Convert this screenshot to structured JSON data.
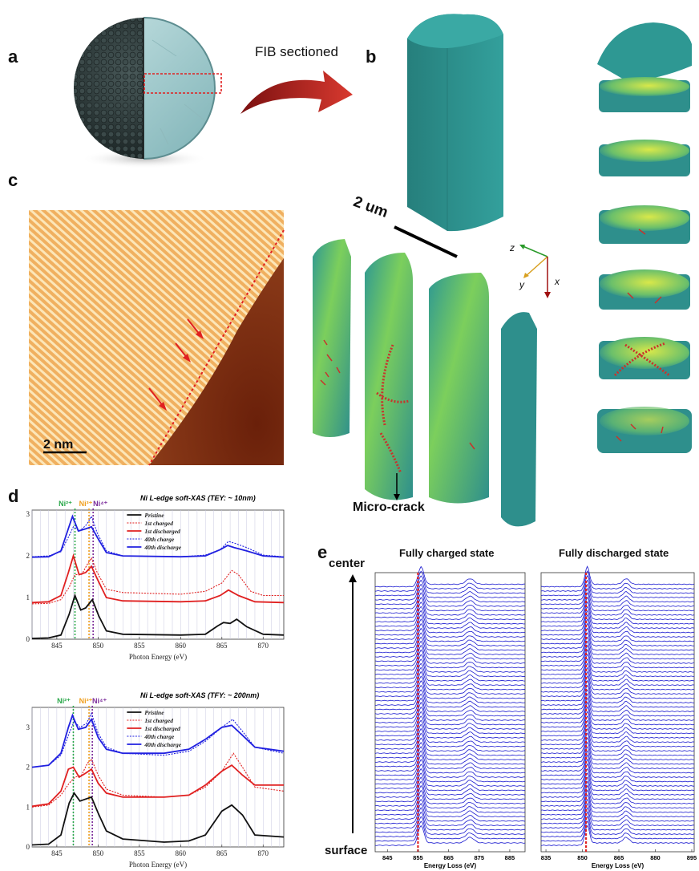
{
  "panels": {
    "a": "a",
    "b": "b",
    "c": "c",
    "d": "d",
    "e": "e"
  },
  "annotations": {
    "fib_sectioned": "FIB sectioned",
    "scale_2um": "2 um",
    "scale_2nm": "2 nm",
    "micro_crack": "Micro-crack",
    "axis_z": "z",
    "axis_y": "y",
    "axis_x": "x",
    "center": "center",
    "surface": "surface"
  },
  "colors": {
    "particle_dark": "#2c3a3a",
    "particle_light": "#9ec9cc",
    "arrow_red": "#c8332b",
    "tomo_teal": "#2e8f8c",
    "tomo_yellow": "#d8e84a",
    "stem_light": "#f3c07a",
    "stem_dark": "#7a2a10",
    "spec_black": "#111111",
    "spec_red": "#e02020",
    "spec_blue": "#2020e0",
    "ni2_green": "#2aa84a",
    "ni3_orange": "#f0a020",
    "ni4_purple": "#7a2a9a",
    "eels_blue": "#1a1ad0",
    "eels_red": "#e02020"
  },
  "chart_data": [
    {
      "type": "line",
      "title": "Ni L-edge soft-XAS (TEY: ~ 10nm)",
      "xlabel": "Photon Energy (eV)",
      "ylabel": "",
      "xlim": [
        842,
        872.5
      ],
      "ylim": [
        0,
        3.1
      ],
      "xticks": [
        845,
        850,
        855,
        860,
        865,
        870
      ],
      "yticks": [
        0,
        1,
        2,
        3
      ],
      "markers": [
        {
          "label": "Ni²⁺",
          "x": 847.2,
          "color": "#2aa84a"
        },
        {
          "label": "Ni³⁺",
          "x": 848.9,
          "color": "#f0a020"
        },
        {
          "label": "Ni⁴⁺",
          "x": 849.4,
          "color": "#7a2a9a"
        }
      ],
      "legend": [
        "Pristine",
        "1st charged",
        "1st discharged",
        "40th charge",
        "40th discharge"
      ],
      "series": [
        {
          "name": "Pristine",
          "color": "#111111",
          "dash": false,
          "offset": 0,
          "points": [
            [
              842,
              0.02
            ],
            [
              844,
              0.03
            ],
            [
              845.5,
              0.1
            ],
            [
              846.5,
              0.6
            ],
            [
              847.2,
              1.05
            ],
            [
              847.9,
              0.7
            ],
            [
              848.5,
              0.75
            ],
            [
              849.3,
              0.95
            ],
            [
              850.1,
              0.55
            ],
            [
              851,
              0.2
            ],
            [
              853,
              0.12
            ],
            [
              860,
              0.1
            ],
            [
              863,
              0.12
            ],
            [
              864.5,
              0.32
            ],
            [
              865.2,
              0.4
            ],
            [
              866,
              0.38
            ],
            [
              866.8,
              0.48
            ],
            [
              868,
              0.3
            ],
            [
              870,
              0.12
            ],
            [
              872.5,
              0.1
            ]
          ]
        },
        {
          "name": "1st charged",
          "color": "#e02020",
          "dash": true,
          "offset": 1,
          "points": [
            [
              842,
              0.85
            ],
            [
              844,
              0.86
            ],
            [
              845.5,
              0.95
            ],
            [
              846.5,
              1.25
            ],
            [
              847.2,
              1.55
            ],
            [
              848,
              1.55
            ],
            [
              848.7,
              1.8
            ],
            [
              849.2,
              1.95
            ],
            [
              849.9,
              1.6
            ],
            [
              851,
              1.2
            ],
            [
              853,
              1.12
            ],
            [
              860,
              1.08
            ],
            [
              863,
              1.15
            ],
            [
              865,
              1.35
            ],
            [
              866.2,
              1.65
            ],
            [
              867,
              1.55
            ],
            [
              868.5,
              1.15
            ],
            [
              870,
              1.05
            ],
            [
              872.5,
              1.05
            ]
          ]
        },
        {
          "name": "1st discharged",
          "color": "#e02020",
          "dash": false,
          "offset": 1,
          "points": [
            [
              842,
              0.88
            ],
            [
              844,
              0.9
            ],
            [
              845.5,
              1.05
            ],
            [
              846.4,
              1.6
            ],
            [
              847.0,
              2.0
            ],
            [
              847.7,
              1.55
            ],
            [
              848.5,
              1.6
            ],
            [
              849.2,
              1.75
            ],
            [
              849.9,
              1.45
            ],
            [
              851,
              1.0
            ],
            [
              853,
              0.92
            ],
            [
              860,
              0.9
            ],
            [
              863,
              0.92
            ],
            [
              864.8,
              1.05
            ],
            [
              865.8,
              1.18
            ],
            [
              867,
              1.05
            ],
            [
              869,
              0.9
            ],
            [
              872.5,
              0.88
            ]
          ]
        },
        {
          "name": "40th charge",
          "color": "#2020e0",
          "dash": true,
          "offset": 2,
          "points": [
            [
              842,
              1.98
            ],
            [
              844,
              2.0
            ],
            [
              845.5,
              2.1
            ],
            [
              846.4,
              2.45
            ],
            [
              847.0,
              2.7
            ],
            [
              847.8,
              2.6
            ],
            [
              848.6,
              2.75
            ],
            [
              849.2,
              2.95
            ],
            [
              849.9,
              2.55
            ],
            [
              851,
              2.12
            ],
            [
              853,
              2.0
            ],
            [
              860,
              1.98
            ],
            [
              863,
              2.02
            ],
            [
              864.8,
              2.15
            ],
            [
              865.8,
              2.35
            ],
            [
              866.6,
              2.3
            ],
            [
              868,
              2.2
            ],
            [
              870,
              2.02
            ],
            [
              872.5,
              1.98
            ]
          ]
        },
        {
          "name": "40th discharge",
          "color": "#2020e0",
          "dash": false,
          "offset": 2,
          "points": [
            [
              842,
              1.97
            ],
            [
              844,
              1.98
            ],
            [
              845.5,
              2.12
            ],
            [
              846.3,
              2.6
            ],
            [
              846.9,
              2.95
            ],
            [
              847.6,
              2.6
            ],
            [
              848.5,
              2.65
            ],
            [
              849.2,
              2.7
            ],
            [
              849.9,
              2.45
            ],
            [
              851,
              2.08
            ],
            [
              853,
              2.0
            ],
            [
              860,
              1.98
            ],
            [
              863,
              2.0
            ],
            [
              864.8,
              2.15
            ],
            [
              865.7,
              2.25
            ],
            [
              866.5,
              2.2
            ],
            [
              868,
              2.12
            ],
            [
              870,
              2.0
            ],
            [
              872.5,
              1.97
            ]
          ]
        }
      ]
    },
    {
      "type": "line",
      "title": "Ni L-edge soft-XAS (TFY: ~ 200nm)",
      "xlabel": "Photon Energy (eV)",
      "ylabel": "",
      "xlim": [
        842,
        872.5
      ],
      "ylim": [
        0,
        3.5
      ],
      "xticks": [
        845,
        850,
        855,
        860,
        865,
        870
      ],
      "yticks": [
        0,
        1,
        2,
        3
      ],
      "markers": [
        {
          "label": "Ni²⁺",
          "x": 847.0,
          "color": "#2aa84a"
        },
        {
          "label": "Ni³⁺",
          "x": 848.9,
          "color": "#f0a020"
        },
        {
          "label": "Ni⁴⁺",
          "x": 849.3,
          "color": "#7a2a9a"
        }
      ],
      "legend": [
        "Pristine",
        "1st charged",
        "1st discharged",
        "40th charge",
        "40th discharge"
      ],
      "series": [
        {
          "name": "Pristine",
          "color": "#111111",
          "dash": false,
          "offset": 0,
          "points": [
            [
              842,
              0.05
            ],
            [
              844,
              0.07
            ],
            [
              845.5,
              0.3
            ],
            [
              846.5,
              1.1
            ],
            [
              847.1,
              1.35
            ],
            [
              847.8,
              1.15
            ],
            [
              848.5,
              1.2
            ],
            [
              849.2,
              1.25
            ],
            [
              850,
              0.85
            ],
            [
              851,
              0.4
            ],
            [
              853,
              0.2
            ],
            [
              858,
              0.12
            ],
            [
              861,
              0.15
            ],
            [
              863,
              0.3
            ],
            [
              865,
              0.9
            ],
            [
              866.2,
              1.05
            ],
            [
              867.5,
              0.8
            ],
            [
              869,
              0.3
            ],
            [
              872.5,
              0.25
            ]
          ]
        },
        {
          "name": "1st charged",
          "color": "#e02020",
          "dash": true,
          "offset": 1,
          "points": [
            [
              842,
              1.0
            ],
            [
              844,
              1.05
            ],
            [
              845.5,
              1.3
            ],
            [
              846.5,
              1.6
            ],
            [
              847.2,
              1.75
            ],
            [
              848,
              1.8
            ],
            [
              848.7,
              2.1
            ],
            [
              849.2,
              2.2
            ],
            [
              850,
              1.8
            ],
            [
              851,
              1.45
            ],
            [
              853,
              1.3
            ],
            [
              858,
              1.25
            ],
            [
              861,
              1.3
            ],
            [
              863,
              1.5
            ],
            [
              865,
              1.9
            ],
            [
              866.4,
              2.35
            ],
            [
              867.5,
              2.0
            ],
            [
              869,
              1.5
            ],
            [
              872.5,
              1.4
            ]
          ]
        },
        {
          "name": "1st discharged",
          "color": "#e02020",
          "dash": false,
          "offset": 1,
          "points": [
            [
              842,
              1.02
            ],
            [
              844,
              1.08
            ],
            [
              845.5,
              1.4
            ],
            [
              846.4,
              1.95
            ],
            [
              847.0,
              2.0
            ],
            [
              847.7,
              1.75
            ],
            [
              848.5,
              1.85
            ],
            [
              849.2,
              1.95
            ],
            [
              850,
              1.6
            ],
            [
              851,
              1.35
            ],
            [
              853,
              1.25
            ],
            [
              858,
              1.25
            ],
            [
              861,
              1.3
            ],
            [
              863,
              1.55
            ],
            [
              865,
              1.9
            ],
            [
              866.2,
              2.05
            ],
            [
              867.5,
              1.8
            ],
            [
              869,
              1.55
            ],
            [
              872.5,
              1.55
            ]
          ]
        },
        {
          "name": "40th charge",
          "color": "#2020e0",
          "dash": true,
          "offset": 2,
          "points": [
            [
              842,
              2.0
            ],
            [
              844,
              2.05
            ],
            [
              845.5,
              2.3
            ],
            [
              846.5,
              2.85
            ],
            [
              847.1,
              3.15
            ],
            [
              847.8,
              3.0
            ],
            [
              848.6,
              3.1
            ],
            [
              849.2,
              3.35
            ],
            [
              850,
              2.85
            ],
            [
              851,
              2.5
            ],
            [
              853,
              2.35
            ],
            [
              858,
              2.3
            ],
            [
              861,
              2.4
            ],
            [
              863,
              2.65
            ],
            [
              865,
              3.0
            ],
            [
              866.3,
              3.2
            ],
            [
              867.5,
              2.9
            ],
            [
              869,
              2.5
            ],
            [
              872.5,
              2.35
            ]
          ]
        },
        {
          "name": "40th discharge",
          "color": "#2020e0",
          "dash": false,
          "offset": 2,
          "points": [
            [
              842,
              2.0
            ],
            [
              844,
              2.05
            ],
            [
              845.5,
              2.35
            ],
            [
              846.4,
              3.0
            ],
            [
              846.9,
              3.3
            ],
            [
              847.6,
              2.95
            ],
            [
              848.5,
              3.0
            ],
            [
              849.2,
              3.2
            ],
            [
              850,
              2.75
            ],
            [
              851,
              2.45
            ],
            [
              853,
              2.35
            ],
            [
              858,
              2.35
            ],
            [
              861,
              2.45
            ],
            [
              863,
              2.7
            ],
            [
              865,
              3.0
            ],
            [
              866.2,
              3.05
            ],
            [
              867.5,
              2.8
            ],
            [
              869,
              2.5
            ],
            [
              872.5,
              2.4
            ]
          ]
        }
      ]
    },
    {
      "type": "line",
      "title": "Fully charged state",
      "xlabel": "Energy Loss (eV)",
      "xlim": [
        841,
        890
      ],
      "xticks": [
        845,
        855,
        865,
        875,
        885
      ],
      "edge_marker": 855,
      "main_peak": 856,
      "secondary_peak": 872,
      "n_spectra": 60
    },
    {
      "type": "line",
      "title": "Fully discharged state",
      "xlabel": "Energy Loss (eV)",
      "xlim": [
        833,
        896
      ],
      "xticks": [
        835,
        850,
        865,
        880,
        895
      ],
      "edge_marker": 851.5,
      "main_peak": 852,
      "secondary_peak": 868,
      "n_spectra": 60
    }
  ]
}
